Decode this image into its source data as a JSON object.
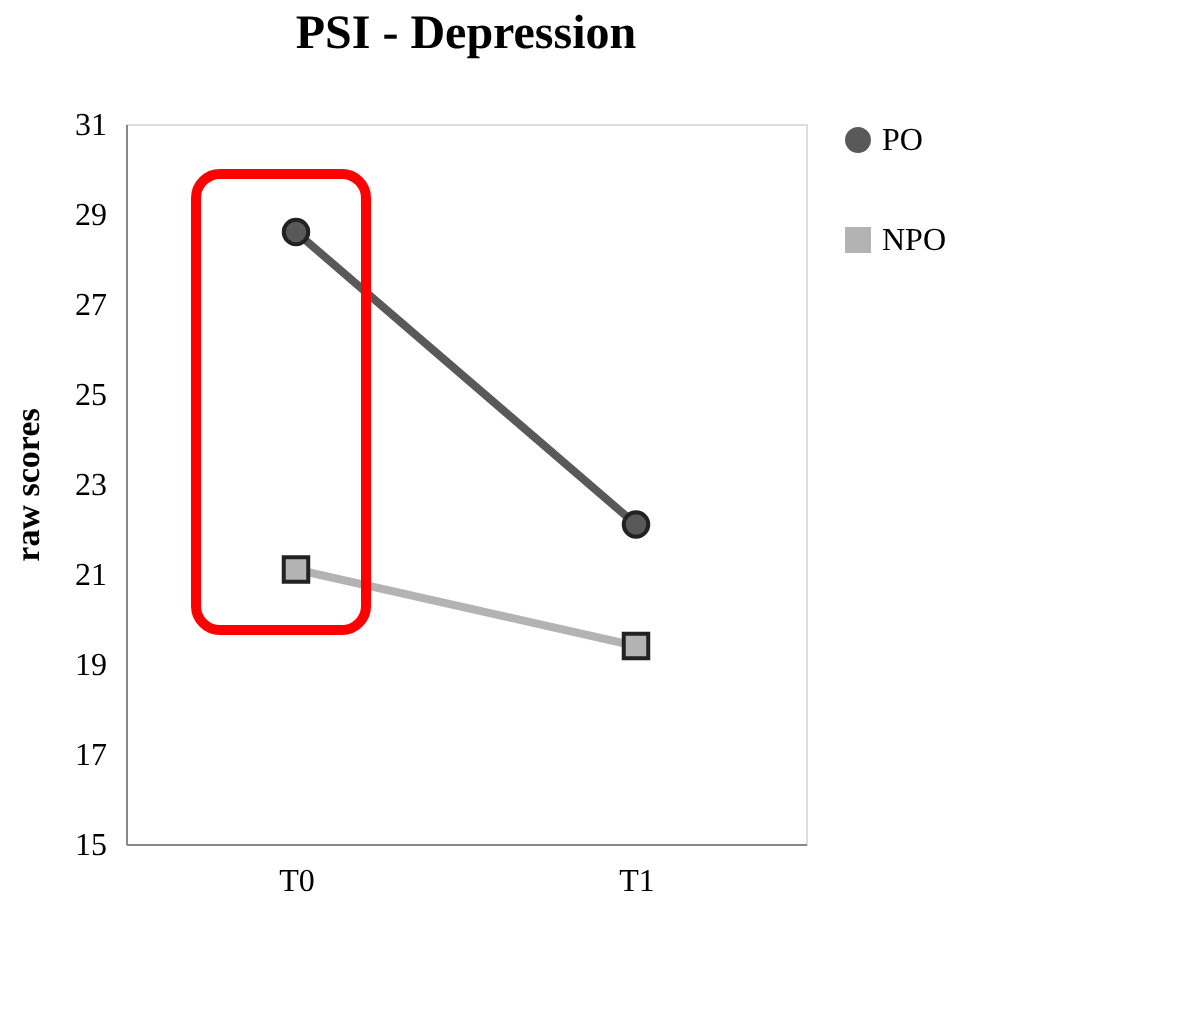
{
  "chart_data": {
    "type": "line",
    "title": "PSI - Depression",
    "ylabel": "raw scores",
    "categories": [
      "T0",
      "T1"
    ],
    "series": [
      {
        "name": "PO",
        "color": "#595959",
        "marker": "circle",
        "values": [
          28.6,
          22.1
        ]
      },
      {
        "name": "NPO",
        "color": "#b3b3b3",
        "marker": "square",
        "values": [
          21.1,
          19.4
        ]
      }
    ],
    "ylim": [
      15,
      31
    ],
    "yticks": [
      15,
      17,
      19,
      21,
      23,
      25,
      27,
      29,
      31
    ],
    "grid": false,
    "legend": "right"
  }
}
